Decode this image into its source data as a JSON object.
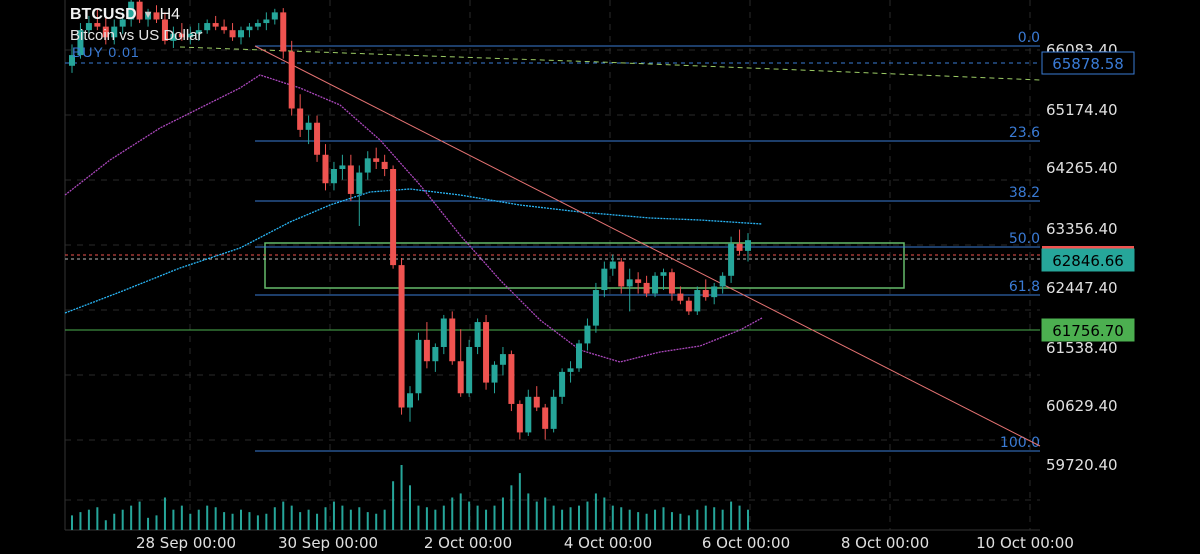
{
  "header": {
    "symbol": "BTCUSD",
    "dropdown_icon": "caret-down-icon",
    "timeframe": "H4",
    "description": "Bitcoin vs US Dollar",
    "order_label": "BUY 0.01"
  },
  "colors": {
    "background": "#000000",
    "bull": "#26a69a",
    "bear": "#ef5350",
    "fib": "#3a7bd5",
    "ma_blue": "#29b6f6",
    "ma_purple": "#ab47bc",
    "box": "#66bb6a",
    "trendline": "#e57373",
    "tag_current": "#26a69a",
    "tag_level": "#4caf50"
  },
  "price_axis": {
    "labels": [
      "66083.40",
      "65174.40",
      "64265.40",
      "63356.40",
      "62447.40",
      "61538.40",
      "60629.40",
      "59720.40"
    ],
    "tag_blue": "65878.58",
    "tag_current": "62846.66",
    "tag_green": "61756.70"
  },
  "fib_levels": [
    "0.0",
    "23.6",
    "38.2",
    "50.0",
    "61.8",
    "100.0"
  ],
  "time_axis": {
    "labels": [
      "28 Sep 00:00",
      "30 Sep 00:00",
      "2 Oct 00:00",
      "4 Oct 00:00",
      "6 Oct 00:00",
      "8 Oct 00:00",
      "10 Oct 00:00"
    ]
  },
  "chart_data": {
    "type": "candlestick",
    "symbol": "BTCUSD",
    "timeframe": "H4",
    "ylim": [
      59500,
      66400
    ],
    "grid": true,
    "fib_levels": [
      {
        "label": "0.0",
        "price": 66110
      },
      {
        "label": "23.6",
        "price": 64680
      },
      {
        "label": "38.2",
        "price": 63800
      },
      {
        "label": "50.0",
        "price": 63090
      },
      {
        "label": "61.8",
        "price": 62380
      },
      {
        "label": "100.0",
        "price": 60080
      }
    ],
    "horizontal_levels": [
      {
        "price": 65878.58
      },
      {
        "price": 62846.66
      },
      {
        "price": 61756.7
      }
    ],
    "zone": {
      "top": 63110,
      "bottom": 62480
    },
    "trendline": [
      {
        "bar": 36,
        "price": 66150
      },
      {
        "bar": 150,
        "price": 60200
      }
    ],
    "ohlc": [
      [
        65300,
        65600,
        65200,
        65450
      ],
      [
        65450,
        65900,
        65400,
        65800
      ],
      [
        65800,
        66000,
        65700,
        65900
      ],
      [
        65900,
        66100,
        65800,
        65850
      ],
      [
        65850,
        66000,
        65600,
        65700
      ],
      [
        65700,
        65950,
        65600,
        65850
      ],
      [
        65850,
        66050,
        65750,
        65950
      ],
      [
        65950,
        66250,
        65850,
        66200
      ],
      [
        66200,
        66250,
        65900,
        65950
      ],
      [
        65950,
        66100,
        65850,
        66050
      ],
      [
        66050,
        66150,
        65900,
        65950
      ],
      [
        65950,
        66050,
        65600,
        65650
      ],
      [
        65650,
        65850,
        65550,
        65750
      ],
      [
        65750,
        65900,
        65650,
        65700
      ],
      [
        65700,
        65850,
        65600,
        65750
      ],
      [
        65750,
        65900,
        65650,
        65800
      ],
      [
        65800,
        65950,
        65750,
        65900
      ],
      [
        65900,
        66000,
        65800,
        65850
      ],
      [
        65850,
        65950,
        65750,
        65800
      ],
      [
        65800,
        65900,
        65650,
        65700
      ],
      [
        65700,
        65850,
        65600,
        65800
      ],
      [
        65800,
        65900,
        65700,
        65850
      ],
      [
        65850,
        65950,
        65800,
        65900
      ],
      [
        65900,
        66050,
        65800,
        65950
      ],
      [
        65950,
        66100,
        65880,
        66050
      ],
      [
        66050,
        66110,
        65400,
        65500
      ],
      [
        65500,
        65650,
        64600,
        64700
      ],
      [
        64700,
        64900,
        64300,
        64400
      ],
      [
        64400,
        64600,
        64200,
        64500
      ],
      [
        64500,
        64600,
        63950,
        64050
      ],
      [
        64050,
        64200,
        63550,
        63650
      ],
      [
        63650,
        63950,
        63550,
        63850
      ],
      [
        63850,
        64050,
        63700,
        63900
      ],
      [
        63900,
        64050,
        63400,
        63500
      ],
      [
        63500,
        63900,
        63050,
        63800
      ],
      [
        63800,
        64100,
        63700,
        64000
      ],
      [
        64000,
        64150,
        63850,
        63950
      ],
      [
        63950,
        64050,
        63750,
        63850
      ],
      [
        63850,
        63900,
        62450,
        62500
      ],
      [
        62500,
        62600,
        60400,
        60500
      ],
      [
        60500,
        60800,
        60300,
        60700
      ],
      [
        60700,
        61550,
        60600,
        61450
      ],
      [
        61450,
        61700,
        61050,
        61150
      ],
      [
        61150,
        61400,
        61000,
        61350
      ],
      [
        61350,
        61800,
        61250,
        61750
      ],
      [
        61750,
        61850,
        61100,
        61150
      ],
      [
        61150,
        61600,
        60650,
        60700
      ],
      [
        60700,
        61450,
        60650,
        61350
      ],
      [
        61350,
        61750,
        61250,
        61700
      ],
      [
        61700,
        61800,
        60750,
        60850
      ],
      [
        60850,
        61150,
        60700,
        61100
      ],
      [
        61100,
        61350,
        60950,
        61250
      ],
      [
        61250,
        61300,
        60450,
        60550
      ],
      [
        60550,
        60600,
        60050,
        60150
      ],
      [
        60150,
        60750,
        60100,
        60650
      ],
      [
        60650,
        60800,
        60450,
        60500
      ],
      [
        60500,
        60550,
        60050,
        60200
      ],
      [
        60200,
        60750,
        60150,
        60650
      ],
      [
        60650,
        61050,
        60550,
        61000
      ],
      [
        61000,
        61150,
        60850,
        61050
      ],
      [
        61050,
        61450,
        61000,
        61400
      ],
      [
        61400,
        61750,
        61300,
        61650
      ],
      [
        61650,
        62250,
        61550,
        62150
      ],
      [
        62150,
        62550,
        62050,
        62450
      ],
      [
        62450,
        62650,
        62350,
        62550
      ],
      [
        62550,
        62600,
        62100,
        62200
      ],
      [
        62200,
        62450,
        61850,
        62300
      ],
      [
        62300,
        62400,
        62100,
        62250
      ],
      [
        62250,
        62350,
        62050,
        62100
      ],
      [
        62100,
        62400,
        62050,
        62350
      ],
      [
        62350,
        62450,
        62150,
        62400
      ],
      [
        62400,
        62450,
        62000,
        62100
      ],
      [
        62100,
        62200,
        61950,
        62000
      ],
      [
        62000,
        62050,
        61800,
        61850
      ],
      [
        61850,
        62200,
        61800,
        62150
      ],
      [
        62150,
        62300,
        62000,
        62050
      ],
      [
        62050,
        62250,
        61950,
        62200
      ],
      [
        62200,
        62400,
        62100,
        62350
      ],
      [
        62350,
        62900,
        62250,
        62800
      ],
      [
        62800,
        63000,
        62650,
        62700
      ],
      [
        62700,
        62950,
        62550,
        62850
      ]
    ],
    "volume": [
      18,
      22,
      25,
      28,
      12,
      20,
      25,
      30,
      35,
      15,
      18,
      40,
      25,
      30,
      20,
      25,
      30,
      28,
      22,
      20,
      25,
      22,
      18,
      20,
      28,
      35,
      30,
      22,
      25,
      20,
      28,
      35,
      30,
      25,
      28,
      22,
      20,
      25,
      60,
      80,
      55,
      30,
      28,
      25,
      30,
      40,
      45,
      35,
      30,
      25,
      30,
      40,
      55,
      70,
      45,
      35,
      40,
      30,
      25,
      28,
      30,
      35,
      45,
      40,
      30,
      28,
      25,
      22,
      20,
      25,
      28,
      22,
      20,
      18,
      25,
      30,
      28,
      25,
      35,
      30,
      25
    ]
  }
}
